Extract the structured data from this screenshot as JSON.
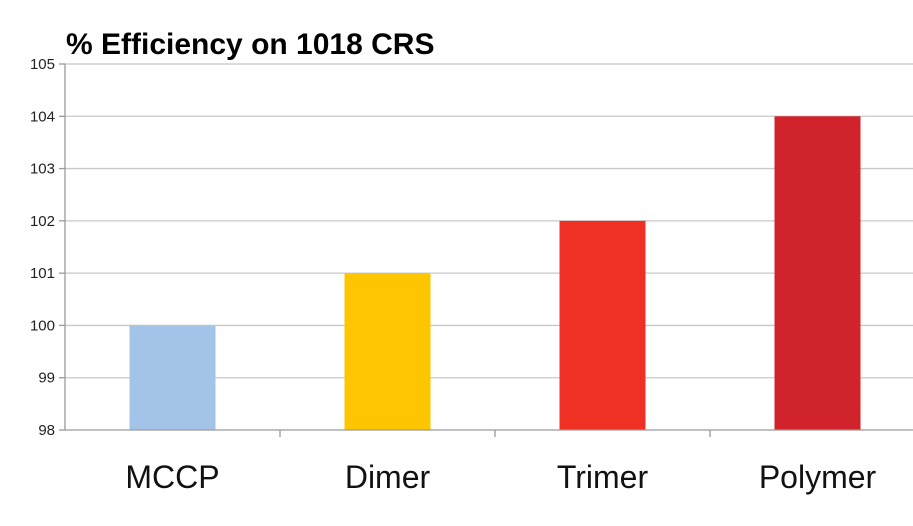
{
  "chart_data": {
    "type": "bar",
    "title": "% Efficiency on 1018 CRS",
    "xlabel": "",
    "ylabel": "",
    "categories": [
      "MCCP",
      "Dimer",
      "Trimer",
      "Polymer"
    ],
    "values": [
      100,
      101,
      102,
      104
    ],
    "colors": [
      "#a3c4e8",
      "#ffc600",
      "#ee3124",
      "#d0232b"
    ],
    "ylim": [
      98,
      105
    ],
    "yticks": [
      98,
      99,
      100,
      101,
      102,
      103,
      104,
      105
    ],
    "grid": true,
    "legend": "none"
  }
}
